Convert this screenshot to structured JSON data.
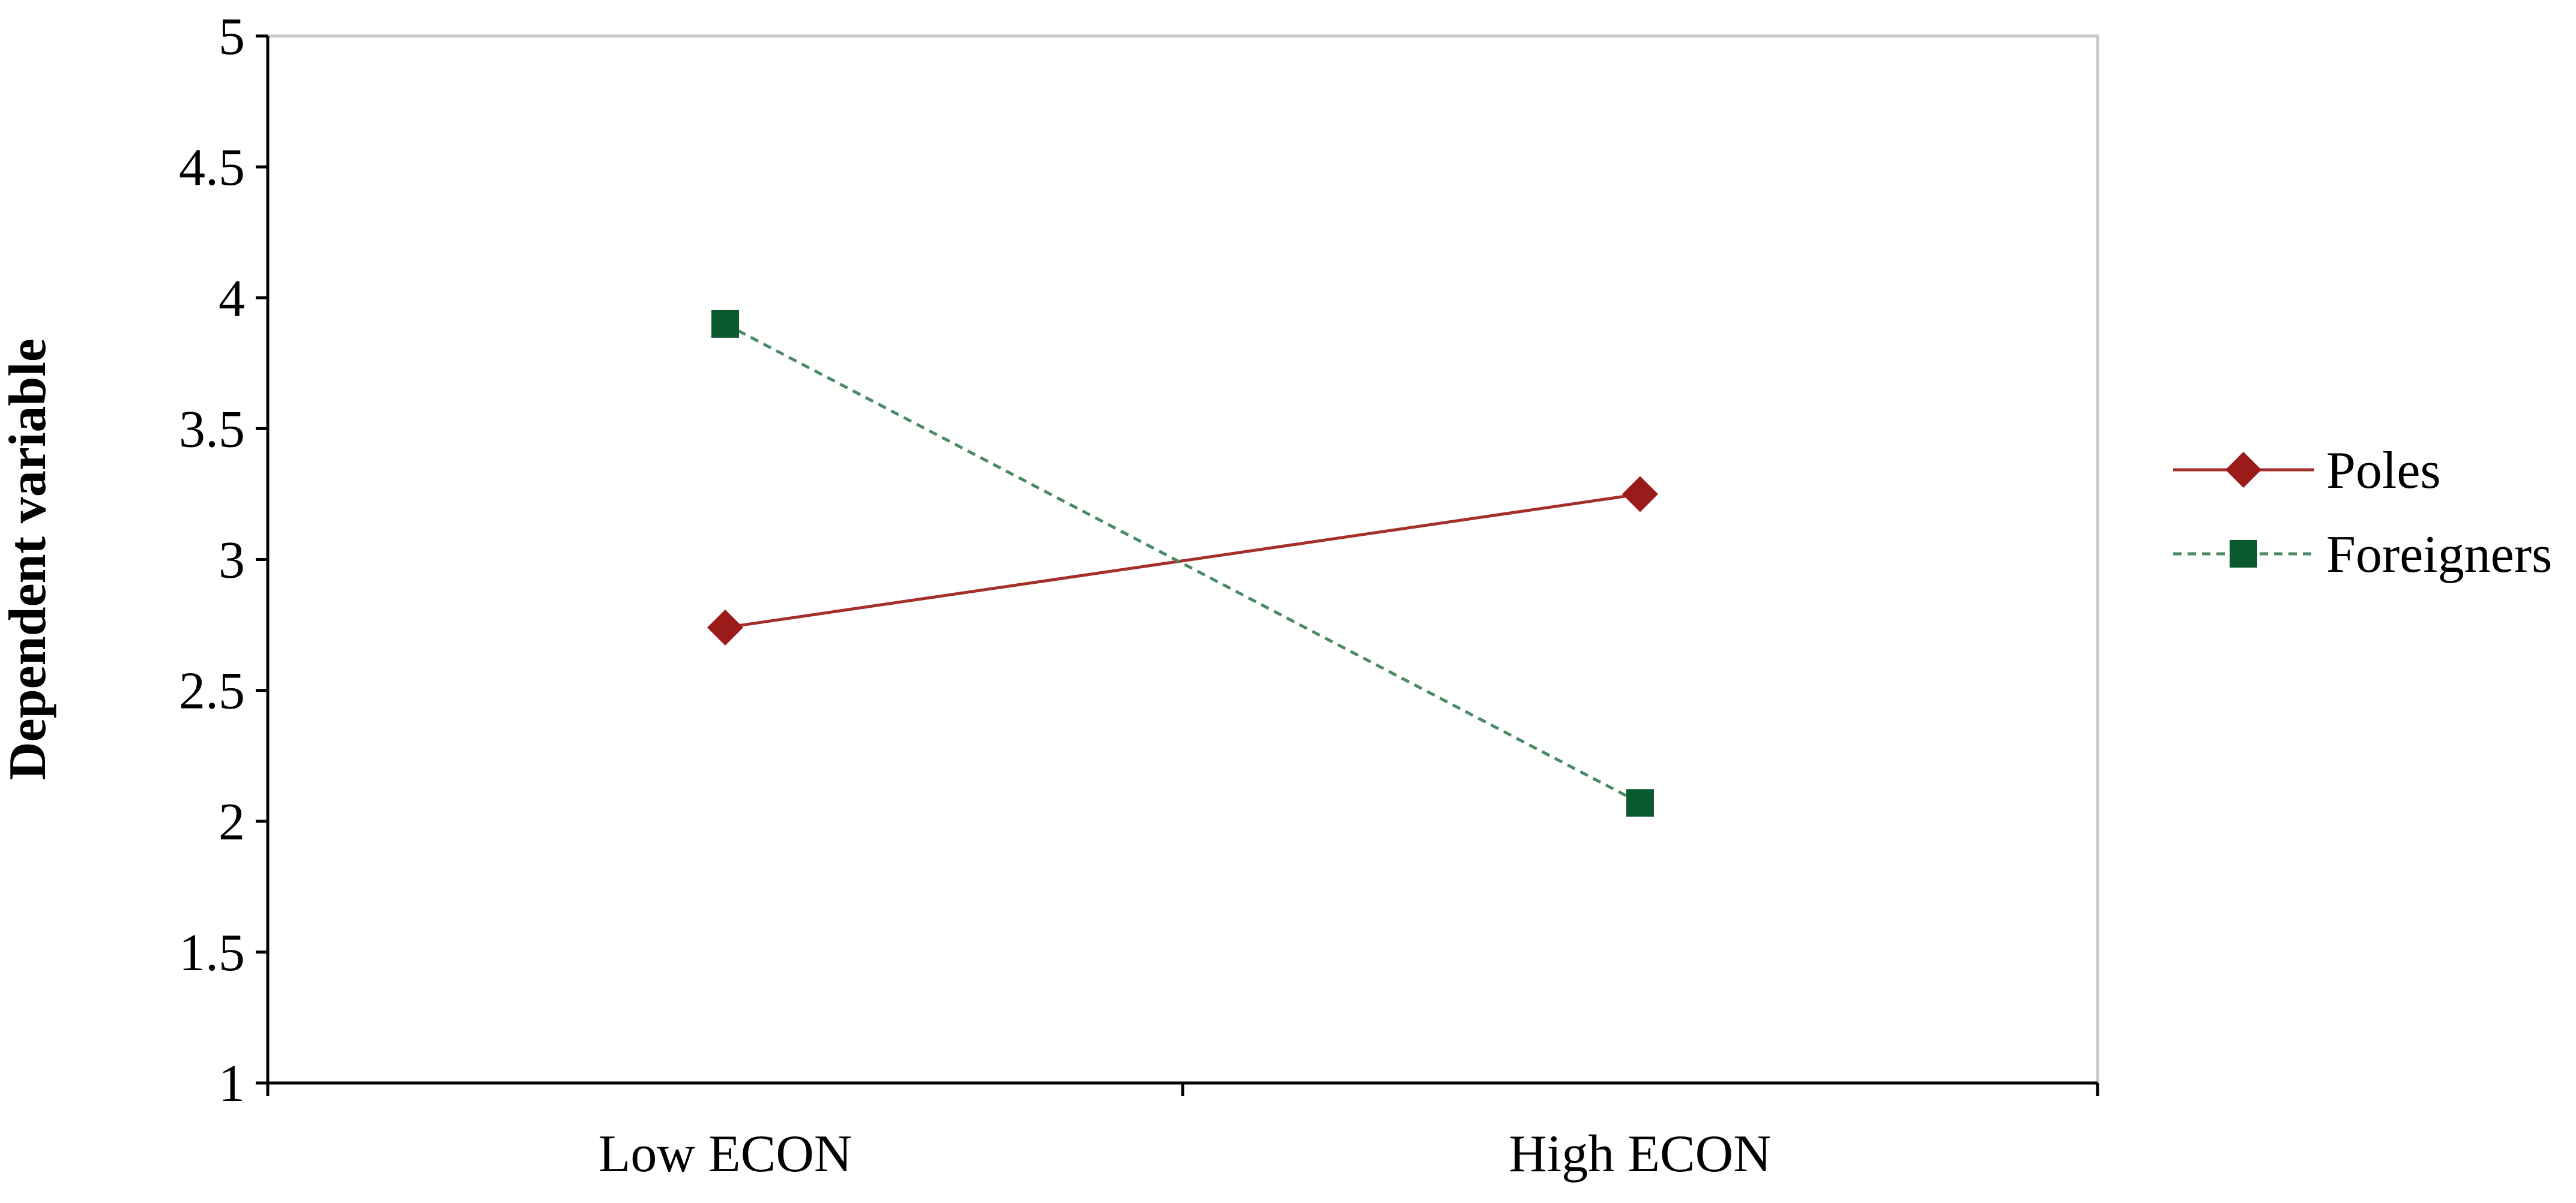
{
  "chart_data": {
    "type": "line",
    "title": "",
    "xlabel": "",
    "ylabel": "Dependent variable",
    "categories": [
      "Low ECON",
      "High ECON"
    ],
    "ylim": [
      1,
      5
    ],
    "yticks": [
      "1",
      "1.5",
      "2",
      "2.5",
      "3",
      "3.5",
      "4",
      "4.5",
      "5"
    ],
    "grid": false,
    "legend_position": "right",
    "series": [
      {
        "name": "Poles",
        "values": [
          2.74,
          3.25
        ],
        "color": "#A5302B",
        "line_style": "solid",
        "marker": "diamond",
        "marker_color": "#9B1B1B"
      },
      {
        "name": "Foreigners",
        "values": [
          3.9,
          2.07
        ],
        "color": "#4A8A64",
        "line_style": "dashed",
        "marker": "square",
        "marker_color": "#0B5A2E"
      }
    ]
  }
}
